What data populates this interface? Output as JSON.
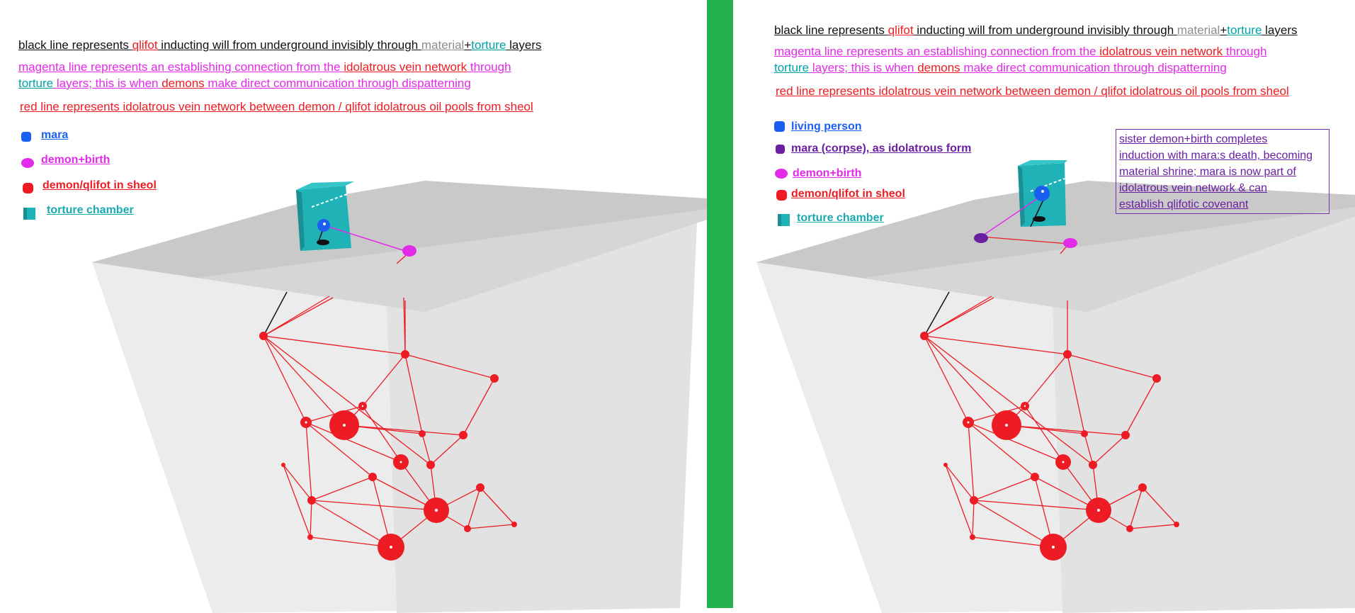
{
  "left": {
    "note_black": {
      "p1": "black line represents ",
      "p2": "qlifot",
      "p3": " inducting will from underground invisibly through ",
      "p4": "material",
      "p5": "+",
      "p6": "torture",
      "p7": " layers"
    },
    "note_magenta": {
      "l1a": "magenta line represents an establishing connection from the ",
      "l1b": "idolatrous vein network",
      "l1c": " through",
      "l2a": "torture",
      "l2b": " layers; this is when ",
      "l2c": "demons",
      "l2d": " make direct communication through dispatterning"
    },
    "note_red": "red line represents idolatrous vein network between demon / qlifot idolatrous oil pools from sheol",
    "legend": [
      "mara",
      "demon+birth",
      "demon/qlifot in sheol",
      "torture chamber"
    ]
  },
  "right": {
    "note_black": {
      "p1": "black line represents ",
      "p2": "qlifot",
      "p3": " inducting will from underground invisibly through ",
      "p4": "material",
      "p5": "+",
      "p6": "torture",
      "p7": " layers"
    },
    "note_magenta": {
      "l1a": "magenta line represents an establishing connection from the ",
      "l1b": "idolatrous vein network",
      "l1c": " through",
      "l2a": "torture",
      "l2b": " layers; this is when ",
      "l2c": "demons",
      "l2d": " make direct communication through dispatterning"
    },
    "note_red": "red line represents idolatrous vein network between demon / qlifot idolatrous oil pools from sheol",
    "legend": [
      "living person",
      "mara (corpse), as idolatrous form",
      "demon+birth",
      "demon/qlifot in sheol",
      "torture chamber"
    ],
    "callout": [
      "sister demon+birth completes",
      "induction with mara:s death, becoming",
      "material shrine; mara is now part of",
      "idolatrous vein network & can",
      "establish qlifotic covenant"
    ]
  },
  "colors": {
    "divider": "#22b14c",
    "vein": "#ed1c24",
    "magenta": "#e32ae8",
    "teal": "#1aa9b0",
    "blue": "#1a5ff0",
    "purple": "#6a1fa3",
    "gray_plane": "#c8c8c8"
  }
}
